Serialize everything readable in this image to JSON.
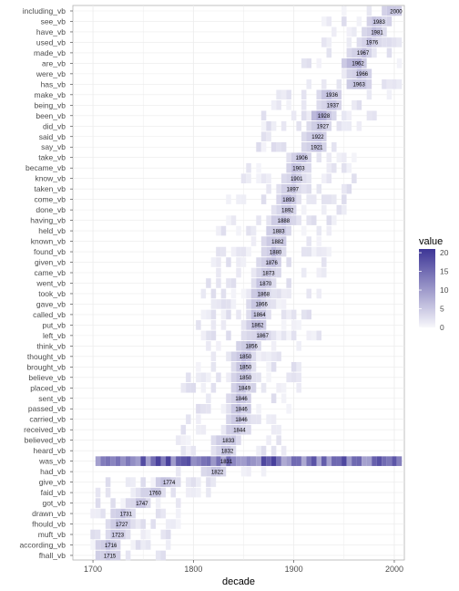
{
  "chart_data": {
    "type": "heatmap",
    "title": "",
    "xlabel": "decade",
    "ylabel": "",
    "xlim": [
      1680,
      2010
    ],
    "x_ticks": [
      "1700",
      "1800",
      "1900",
      "2000"
    ],
    "x_tick_values": [
      1700,
      1800,
      1900,
      2000
    ],
    "legend": {
      "title": "value",
      "ticks": [
        "20",
        "15",
        "10",
        "5",
        "0"
      ],
      "tick_values": [
        20,
        15,
        10,
        5,
        0
      ],
      "range": [
        0,
        21
      ],
      "low_color": "#f7f7fb",
      "high_color": "#3d3596",
      "placement": "right"
    },
    "grid": true,
    "categories": [
      {
        "label": "including_vb",
        "year": "2000",
        "x": 2000
      },
      {
        "label": "see_vb",
        "year": "1983",
        "x": 1983
      },
      {
        "label": "have_vb",
        "year": "1981",
        "x": 1981
      },
      {
        "label": "used_vb",
        "year": "1976",
        "x": 1976
      },
      {
        "label": "made_vb",
        "year": "1967",
        "x": 1967
      },
      {
        "label": "are_vb",
        "year": "1962",
        "x": 1962
      },
      {
        "label": "were_vb",
        "year": "1966",
        "x": 1966
      },
      {
        "label": "has_vb",
        "year": "1963",
        "x": 1963
      },
      {
        "label": "make_vb",
        "year": "1936",
        "x": 1936
      },
      {
        "label": "being_vb",
        "year": "1937",
        "x": 1937
      },
      {
        "label": "been_vb",
        "year": "1928",
        "x": 1928
      },
      {
        "label": "did_vb",
        "year": "1927",
        "x": 1927
      },
      {
        "label": "said_vb",
        "year": "1922",
        "x": 1922
      },
      {
        "label": "say_vb",
        "year": "1921",
        "x": 1921
      },
      {
        "label": "take_vb",
        "year": "1906",
        "x": 1906
      },
      {
        "label": "became_vb",
        "year": "1903",
        "x": 1903
      },
      {
        "label": "know_vb",
        "year": "1901",
        "x": 1901
      },
      {
        "label": "taken_vb",
        "year": "1897",
        "x": 1897
      },
      {
        "label": "come_vb",
        "year": "1893",
        "x": 1893
      },
      {
        "label": "done_vb",
        "year": "1892",
        "x": 1892
      },
      {
        "label": "having_vb",
        "year": "1888",
        "x": 1888
      },
      {
        "label": "held_vb",
        "year": "1883",
        "x": 1883
      },
      {
        "label": "known_vb",
        "year": "1882",
        "x": 1882
      },
      {
        "label": "found_vb",
        "year": "1880",
        "x": 1880
      },
      {
        "label": "given_vb",
        "year": "1876",
        "x": 1876
      },
      {
        "label": "came_vb",
        "year": "1873",
        "x": 1873
      },
      {
        "label": "went_vb",
        "year": "1870",
        "x": 1870
      },
      {
        "label": "took_vb",
        "year": "1868",
        "x": 1868
      },
      {
        "label": "gave_vb",
        "year": "1866",
        "x": 1866
      },
      {
        "label": "called_vb",
        "year": "1864",
        "x": 1864
      },
      {
        "label": "put_vb",
        "year": "1862",
        "x": 1862
      },
      {
        "label": "left_vb",
        "year": "1867",
        "x": 1867
      },
      {
        "label": "think_vb",
        "year": "1856",
        "x": 1856
      },
      {
        "label": "thought_vb",
        "year": "1850",
        "x": 1850
      },
      {
        "label": "brought_vb",
        "year": "1850",
        "x": 1850
      },
      {
        "label": "believe_vb",
        "year": "1850",
        "x": 1850
      },
      {
        "label": "placed_vb",
        "year": "1849",
        "x": 1849
      },
      {
        "label": "sent_vb",
        "year": "1846",
        "x": 1846
      },
      {
        "label": "passed_vb",
        "year": "1846",
        "x": 1846
      },
      {
        "label": "carried_vb",
        "year": "1846",
        "x": 1846
      },
      {
        "label": "received_vb",
        "year": "1844",
        "x": 1844
      },
      {
        "label": "believed_vb",
        "year": "1833",
        "x": 1833
      },
      {
        "label": "heard_vb",
        "year": "1832",
        "x": 1832
      },
      {
        "label": "was_vb",
        "year": "1831",
        "x": 1831
      },
      {
        "label": "had_vb",
        "year": "1822",
        "x": 1822
      },
      {
        "label": "give_vb",
        "year": "1774",
        "x": 1774
      },
      {
        "label": "faid_vb",
        "year": "1760",
        "x": 1760
      },
      {
        "label": "got_vb",
        "year": "1747",
        "x": 1747
      },
      {
        "label": "drawn_vb",
        "year": "1731",
        "x": 1731
      },
      {
        "label": "fhould_vb",
        "year": "1727",
        "x": 1727
      },
      {
        "label": "muft_vb",
        "year": "1723",
        "x": 1723
      },
      {
        "label": "according_vb",
        "year": "1716",
        "x": 1716
      },
      {
        "label": "fhall_vb",
        "year": "1715",
        "x": 1715
      }
    ]
  }
}
